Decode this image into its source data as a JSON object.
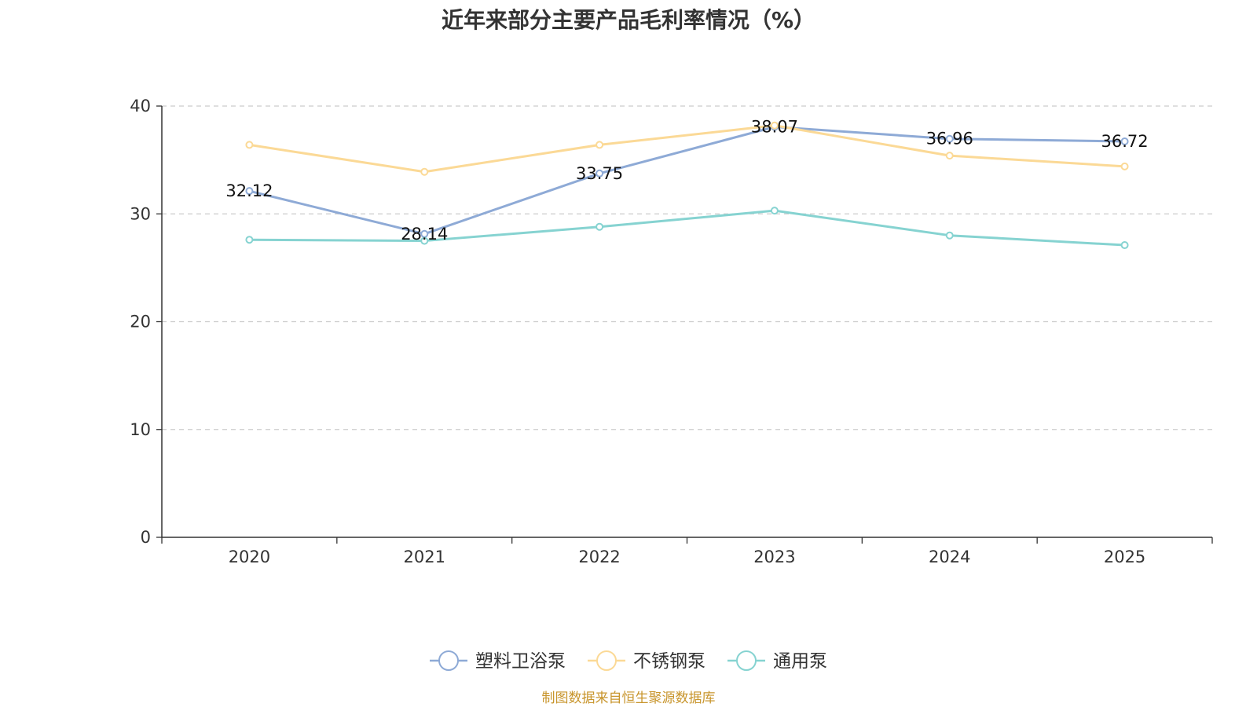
{
  "chart_data": {
    "type": "line",
    "title": "近年来部分主要产品毛利率情况（%）",
    "xlabel": "",
    "ylabel": "",
    "categories": [
      "2020",
      "2021",
      "2022",
      "2023",
      "2024",
      "2025"
    ],
    "ylim": [
      0,
      40
    ],
    "yticks": [
      0,
      10,
      20,
      30,
      40
    ],
    "grid": true,
    "legend_position": "bottom-center",
    "series": [
      {
        "name": "塑料卫浴泵",
        "color": "#8eaad6",
        "values": [
          32.12,
          28.14,
          33.75,
          38.07,
          36.96,
          36.72
        ],
        "labels": [
          "32.12",
          "28.14",
          "33.75",
          "38.07",
          "36.96",
          "36.72"
        ]
      },
      {
        "name": "不锈钢泵",
        "color": "#fbd996",
        "values": [
          36.4,
          33.9,
          36.4,
          38.2,
          35.4,
          34.4
        ]
      },
      {
        "name": "通用泵",
        "color": "#86d3d1",
        "values": [
          27.6,
          27.5,
          28.8,
          30.3,
          28.0,
          27.1
        ]
      }
    ]
  },
  "source": "制图数据来自恒生聚源数据库"
}
